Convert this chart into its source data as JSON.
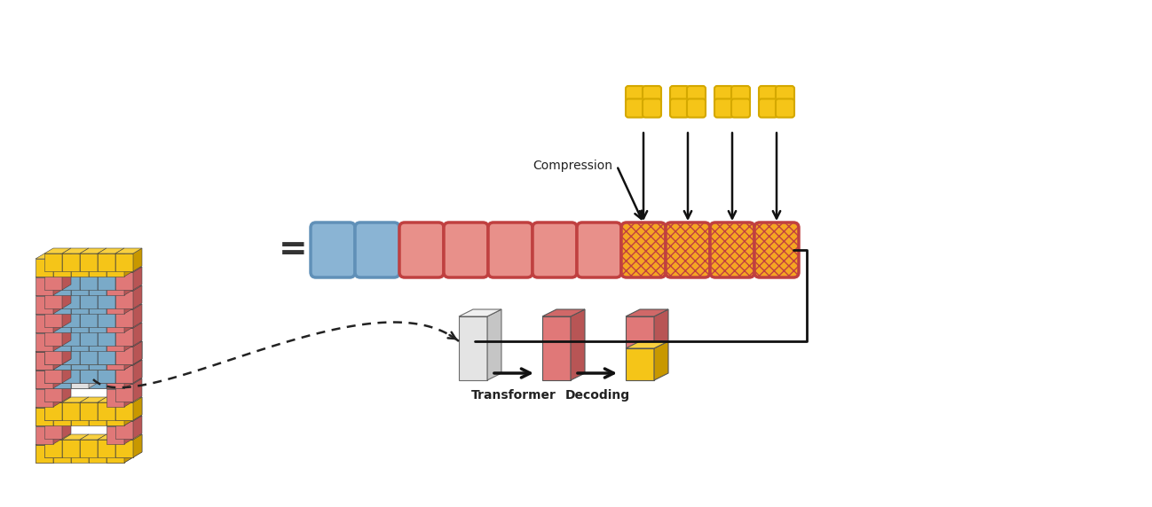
{
  "bg_color": "#ffffff",
  "token_blue_fill": "#8ab4d4",
  "token_blue_edge": "#6090b8",
  "token_red_fill": "#e8908a",
  "token_red_edge": "#c04040",
  "token_hatched_fill": "#f5a623",
  "token_hatched_edge": "#c04040",
  "gold_fill": "#f5c518",
  "gold_edge": "#d4a800",
  "compression_label": "Compression",
  "transformer_label": "Transformer",
  "decoding_label": "Decoding",
  "n_blue_tokens": 2,
  "n_red_tokens": 5,
  "n_hatched_tokens": 4,
  "n_gold_groups": 4,
  "arrow_color": "#111111",
  "line_color": "#111111"
}
